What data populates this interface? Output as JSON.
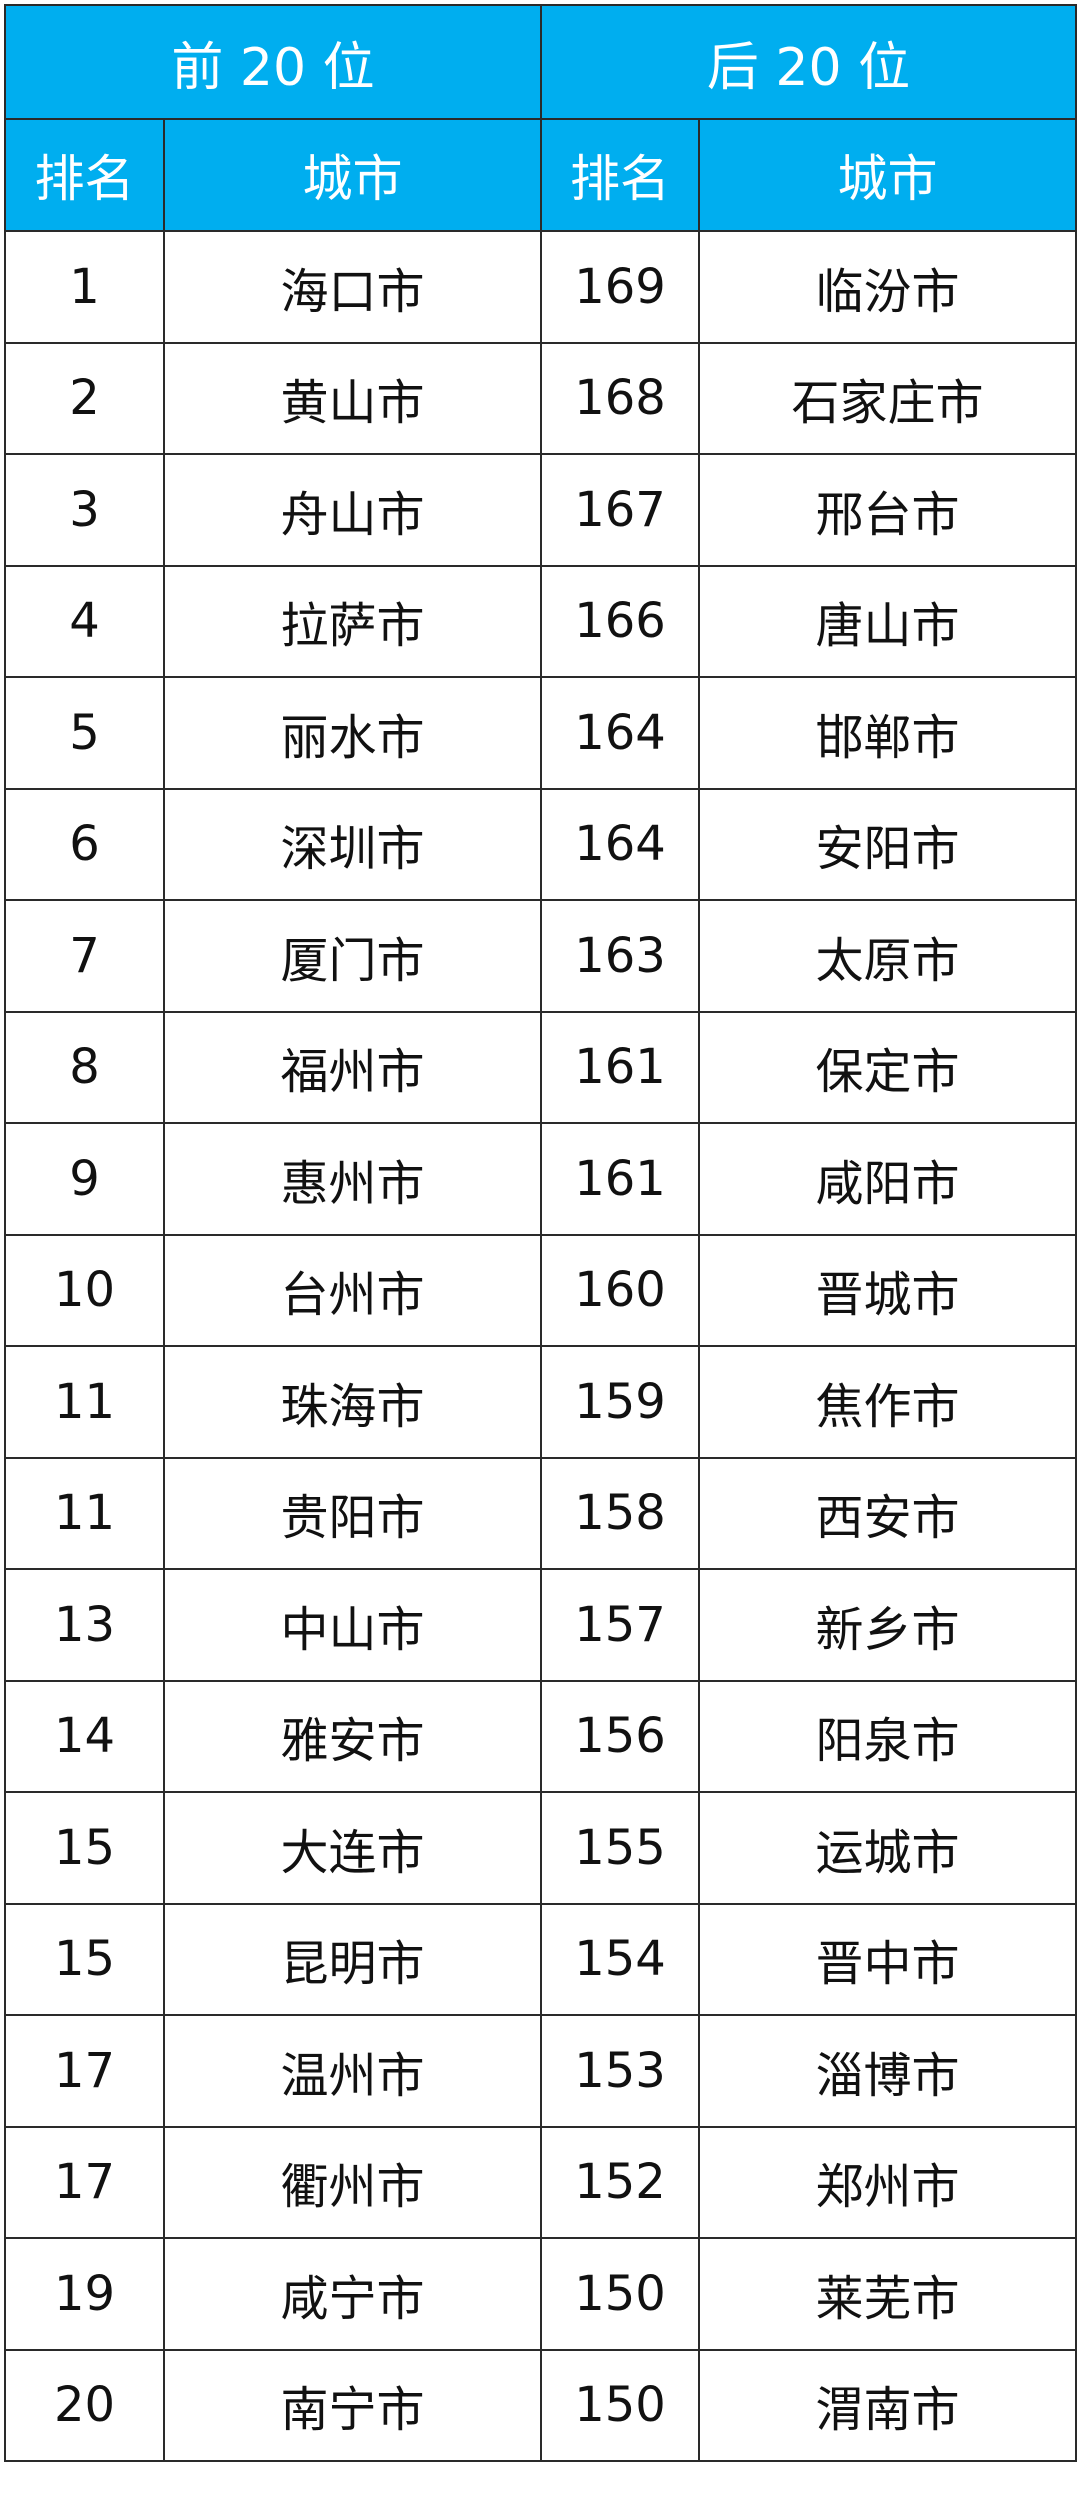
{
  "header": {
    "top_group": "前 20 位",
    "bottom_group": "后 20 位",
    "rank_label": "排名",
    "city_label": "城市"
  },
  "colors": {
    "header_bg": "#00aeef",
    "header_text": "#ffffff"
  },
  "rows": [
    {
      "top_rank": "1",
      "top_city": "海口市",
      "bottom_rank": "169",
      "bottom_city": "临汾市"
    },
    {
      "top_rank": "2",
      "top_city": "黄山市",
      "bottom_rank": "168",
      "bottom_city": "石家庄市"
    },
    {
      "top_rank": "3",
      "top_city": "舟山市",
      "bottom_rank": "167",
      "bottom_city": "邢台市"
    },
    {
      "top_rank": "4",
      "top_city": "拉萨市",
      "bottom_rank": "166",
      "bottom_city": "唐山市"
    },
    {
      "top_rank": "5",
      "top_city": "丽水市",
      "bottom_rank": "164",
      "bottom_city": "邯郸市"
    },
    {
      "top_rank": "6",
      "top_city": "深圳市",
      "bottom_rank": "164",
      "bottom_city": "安阳市"
    },
    {
      "top_rank": "7",
      "top_city": "厦门市",
      "bottom_rank": "163",
      "bottom_city": "太原市"
    },
    {
      "top_rank": "8",
      "top_city": "福州市",
      "bottom_rank": "161",
      "bottom_city": "保定市"
    },
    {
      "top_rank": "9",
      "top_city": "惠州市",
      "bottom_rank": "161",
      "bottom_city": "咸阳市"
    },
    {
      "top_rank": "10",
      "top_city": "台州市",
      "bottom_rank": "160",
      "bottom_city": "晋城市"
    },
    {
      "top_rank": "11",
      "top_city": "珠海市",
      "bottom_rank": "159",
      "bottom_city": "焦作市"
    },
    {
      "top_rank": "11",
      "top_city": "贵阳市",
      "bottom_rank": "158",
      "bottom_city": "西安市"
    },
    {
      "top_rank": "13",
      "top_city": "中山市",
      "bottom_rank": "157",
      "bottom_city": "新乡市"
    },
    {
      "top_rank": "14",
      "top_city": "雅安市",
      "bottom_rank": "156",
      "bottom_city": "阳泉市"
    },
    {
      "top_rank": "15",
      "top_city": "大连市",
      "bottom_rank": "155",
      "bottom_city": "运城市"
    },
    {
      "top_rank": "15",
      "top_city": "昆明市",
      "bottom_rank": "154",
      "bottom_city": "晋中市"
    },
    {
      "top_rank": "17",
      "top_city": "温州市",
      "bottom_rank": "153",
      "bottom_city": "淄博市"
    },
    {
      "top_rank": "17",
      "top_city": "衢州市",
      "bottom_rank": "152",
      "bottom_city": "郑州市"
    },
    {
      "top_rank": "19",
      "top_city": "咸宁市",
      "bottom_rank": "150",
      "bottom_city": "莱芜市"
    },
    {
      "top_rank": "20",
      "top_city": "南宁市",
      "bottom_rank": "150",
      "bottom_city": "渭南市"
    }
  ]
}
